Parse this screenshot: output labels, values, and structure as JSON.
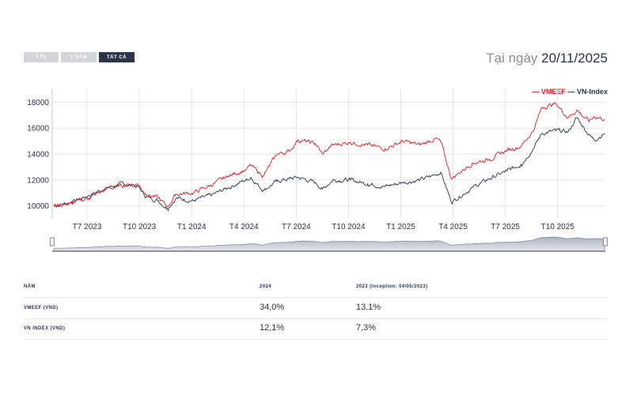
{
  "range_buttons": [
    {
      "label": "YTD",
      "active": false
    },
    {
      "label": "1 NĂM",
      "active": false
    },
    {
      "label": "TẤT CẢ",
      "active": true
    }
  ],
  "as_of": {
    "prefix": "Tại ngày",
    "date": "20/11/2025"
  },
  "chart_data": {
    "type": "line",
    "title": "",
    "xlabel": "",
    "ylabel": "",
    "ylim": [
      9000,
      19000
    ],
    "yticks": [
      "10000",
      "12000",
      "14000",
      "16000",
      "18000"
    ],
    "xticks": [
      "T7 2023",
      "T10 2023",
      "T1 2024",
      "T4 2024",
      "T7 2024",
      "T10 2024",
      "T1 2025",
      "T4 2025",
      "T7 2025",
      "T10 2025"
    ],
    "x_months_since_2023_05": [
      0,
      1,
      2,
      3,
      4,
      4.8,
      5.3,
      6,
      6.5,
      7,
      8,
      9,
      10,
      11,
      11.3,
      12,
      12.8,
      13.5,
      14,
      15,
      15.4,
      16,
      17,
      18,
      19,
      20,
      21,
      21.9,
      22.2,
      22.8,
      24,
      25,
      26,
      26.8,
      27.5,
      28,
      28.8,
      29.5,
      30,
      30.7,
      31,
      31.6
    ],
    "series": [
      {
        "name": "VMEEF",
        "color": "#e31b23",
        "values": [
          10000,
          10200,
          10600,
          11300,
          11600,
          11700,
          10900,
          10600,
          9900,
          10900,
          11000,
          11600,
          12300,
          12800,
          13100,
          12300,
          14000,
          14200,
          15100,
          14800,
          14000,
          14700,
          14900,
          14700,
          14400,
          15000,
          14700,
          15200,
          14900,
          12100,
          13300,
          13600,
          14300,
          14600,
          15800,
          17600,
          17900,
          16800,
          17400,
          16500,
          16900,
          16700
        ]
      },
      {
        "name": "VN-Index",
        "color": "#2c3449",
        "values": [
          10000,
          10300,
          10800,
          11400,
          11700,
          11500,
          10700,
          10400,
          9800,
          10600,
          10400,
          10800,
          11400,
          12000,
          12200,
          11200,
          11900,
          12100,
          12200,
          11800,
          11300,
          12000,
          12000,
          11700,
          11500,
          11800,
          12000,
          12400,
          12600,
          10300,
          11400,
          12100,
          12700,
          13200,
          14400,
          15600,
          15800,
          15700,
          16800,
          15500,
          15100,
          15600
        ]
      }
    ],
    "legend_position": "top-right",
    "grid": true
  },
  "table": {
    "headers": [
      "NĂM",
      "2024",
      "2023 (Inception: 04/05/2023)"
    ],
    "rows": [
      [
        "VMEEF (VND)",
        "34,0%",
        "13,1%"
      ],
      [
        "VN INDEX (VND)",
        "12,1%",
        "7,3%"
      ]
    ]
  }
}
